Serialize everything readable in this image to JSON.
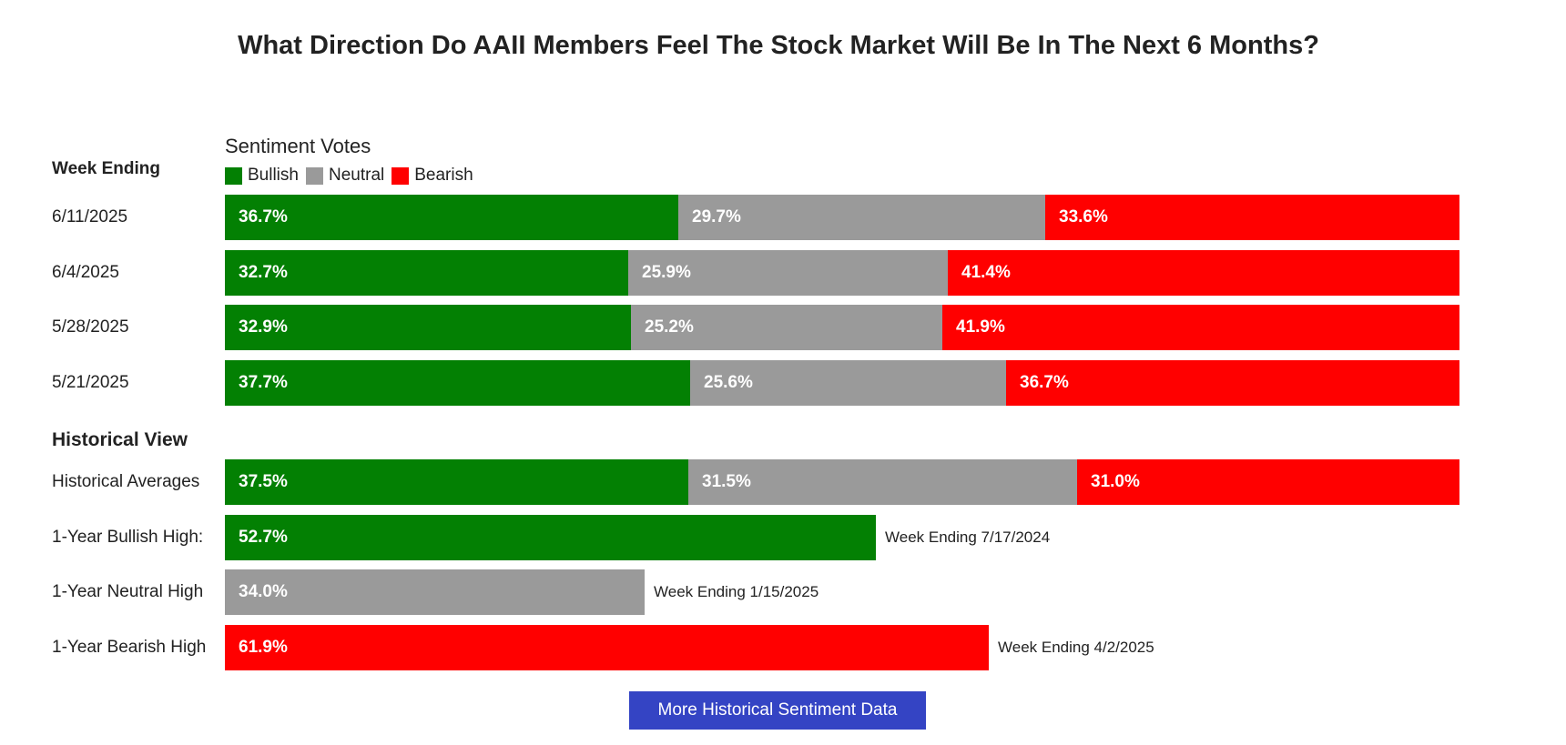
{
  "title": "What Direction Do AAII Members Feel The Stock Market Will Be In The Next 6 Months?",
  "subtitle": "Sentiment Votes",
  "week_header": "Week Ending",
  "historical_header": "Historical View",
  "button_label": "More Historical Sentiment Data",
  "colors": {
    "bullish": "#038003",
    "neutral": "#9a9a9a",
    "bearish": "#ff0000"
  },
  "chart_data": {
    "type": "bar",
    "orientation": "horizontal",
    "stacked": true,
    "legend_placement": "top-left",
    "legend": [
      "Bullish",
      "Neutral",
      "Bearish"
    ],
    "weeks": [
      {
        "label": "6/11/2025",
        "bullish": 36.7,
        "neutral": 29.7,
        "bearish": 33.6,
        "text": [
          "36.7%",
          "29.7%",
          "33.6%"
        ]
      },
      {
        "label": "6/4/2025",
        "bullish": 32.7,
        "neutral": 25.9,
        "bearish": 41.4,
        "text": [
          "32.7%",
          "25.9%",
          "41.4%"
        ]
      },
      {
        "label": "5/28/2025",
        "bullish": 32.9,
        "neutral": 25.2,
        "bearish": 41.9,
        "text": [
          "32.9%",
          "25.2%",
          "41.9%"
        ]
      },
      {
        "label": "5/21/2025",
        "bullish": 37.7,
        "neutral": 25.6,
        "bearish": 36.7,
        "text": [
          "37.7%",
          "25.6%",
          "36.7%"
        ]
      }
    ],
    "historical_average": {
      "label": "Historical Averages",
      "bullish": 37.5,
      "neutral": 31.5,
      "bearish": 31.0,
      "text": [
        "37.5%",
        "31.5%",
        "31.0%"
      ]
    },
    "highs": [
      {
        "label": "1-Year Bullish High:",
        "kind": "bullish",
        "value": 52.7,
        "text": "52.7%",
        "note": "Week Ending 7/17/2024"
      },
      {
        "label": "1-Year Neutral High",
        "kind": "neutral",
        "value": 34.0,
        "text": "34.0%",
        "note": "Week Ending 1/15/2025"
      },
      {
        "label": "1-Year Bearish High",
        "kind": "bearish",
        "value": 61.9,
        "text": "61.9%",
        "note": "Week Ending 4/2/2025"
      }
    ]
  }
}
